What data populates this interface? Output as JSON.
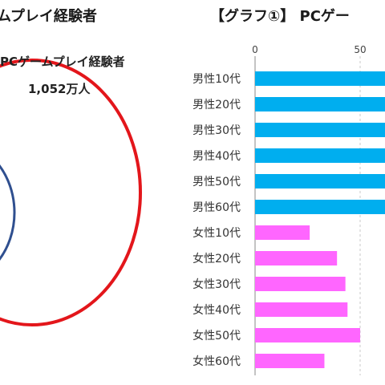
{
  "left_panel": {
    "title": "ムプレイ経験者",
    "venn_label": "PCゲームプレイ経験者",
    "venn_count": "1,052万人"
  },
  "colors": {
    "male": "#00aeef",
    "female": "#ff66ff",
    "venn_outer": "#e3161b",
    "venn_inner": "#2f4f8f",
    "grid": "#c8c8c8"
  },
  "chart_data": {
    "type": "bar",
    "orientation": "horizontal",
    "title": "【グラフ①】 PCゲー",
    "x_ticks": [
      0,
      50
    ],
    "categories": [
      "男性10代",
      "男性20代",
      "男性30代",
      "男性40代",
      "男性50代",
      "男性60代",
      "女性10代",
      "女性20代",
      "女性30代",
      "女性40代",
      "女性50代",
      "女性60代"
    ],
    "values": [
      90,
      90,
      90,
      90,
      90,
      90,
      26,
      39,
      43,
      44,
      50,
      33
    ],
    "visible_max": 58,
    "series_colors": [
      "male",
      "male",
      "male",
      "male",
      "male",
      "male",
      "female",
      "female",
      "female",
      "female",
      "female",
      "female"
    ]
  }
}
